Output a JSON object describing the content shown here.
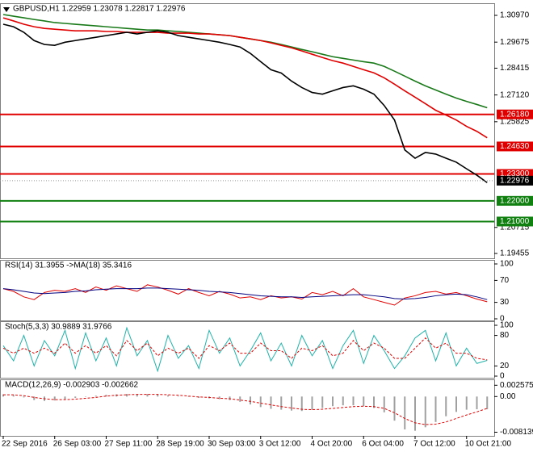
{
  "chart_data": [
    {
      "type": "line",
      "title": "GBPUSD,H1  1.22959 1.23078 1.22817 1.22976",
      "categories": [
        "22 Sep 2016",
        null,
        null,
        null,
        null,
        "26 Sep 03:00",
        null,
        null,
        null,
        null,
        "27 Sep 11:00",
        null,
        null,
        null,
        null,
        "28 Sep 19:00",
        null,
        null,
        null,
        null,
        "30 Sep 03:00",
        null,
        null,
        null,
        null,
        "3 Oct 12:00",
        null,
        null,
        null,
        null,
        "4 Oct 20:00",
        null,
        null,
        null,
        null,
        "6 Oct 04:00",
        null,
        null,
        null,
        null,
        "7 Oct 12:00",
        null,
        null,
        null,
        null,
        "10 Oct 21:00",
        null,
        null
      ],
      "series": [
        {
          "color": "#1a7a1a",
          "values": [
            1.3101,
            1.3093,
            1.3085,
            1.3077,
            1.307,
            1.3062,
            1.3058,
            1.3054,
            1.305,
            1.3046,
            1.3042,
            1.3038,
            1.3034,
            1.303,
            1.3026,
            1.3026,
            1.3022,
            1.3019,
            1.3015,
            1.3011,
            1.3007,
            1.3003,
            1.2999,
            1.2991,
            1.2983,
            1.2975,
            1.2967,
            1.2956,
            1.2944,
            1.2932,
            1.2921,
            1.2909,
            1.2897,
            1.2889,
            1.2881,
            1.2873,
            1.2866,
            1.285,
            1.2827,
            1.2803,
            1.2779,
            1.2756,
            1.2736,
            1.2716,
            1.2697,
            1.2681,
            1.2666,
            1.265
          ]
        },
        {
          "color": "#e00000",
          "values": [
            1.3085,
            1.307,
            1.3054,
            1.3042,
            1.3034,
            1.303,
            1.3026,
            1.3022,
            1.3022,
            1.3022,
            1.3019,
            1.3019,
            1.3015,
            1.3015,
            1.3015,
            1.3015,
            1.3011,
            1.3011,
            1.3011,
            1.3007,
            1.3007,
            1.3003,
            1.2999,
            1.2991,
            1.2983,
            1.2975,
            1.2964,
            1.2952,
            1.294,
            1.2925,
            1.2909,
            1.2893,
            1.2878,
            1.2866,
            1.285,
            1.2834,
            1.2819,
            1.2795,
            1.2764,
            1.2732,
            1.2701,
            1.267,
            1.2638,
            1.2615,
            1.2591,
            1.256,
            1.2536,
            1.2505
          ]
        },
        {
          "color": "#000000",
          "values": [
            1.3054,
            1.3042,
            1.3015,
            1.2975,
            1.2956,
            1.2952,
            1.2967,
            1.2975,
            1.2983,
            1.2991,
            1.2999,
            1.3007,
            1.3015,
            1.3007,
            1.3015,
            1.3022,
            1.3015,
            1.2999,
            1.2991,
            1.2983,
            1.2975,
            1.2967,
            1.2956,
            1.2944,
            1.2913,
            1.2873,
            1.2834,
            1.2818,
            1.2779,
            1.2748,
            1.2724,
            1.2716,
            1.2732,
            1.2748,
            1.2756,
            1.274,
            1.2716,
            1.2661,
            1.2591,
            1.2446,
            1.2406,
            1.2434,
            1.2426,
            1.2406,
            1.2387,
            1.2355,
            1.2324,
            1.2288
          ]
        }
      ],
      "ylim": [
        1.193,
        1.314
      ],
      "yticks": [
        {
          "value": 1.3097,
          "label": "1.30970"
        },
        {
          "value": 1.29675,
          "label": "1.29675"
        },
        {
          "value": 1.28415,
          "label": "1.28415"
        },
        {
          "value": 1.2712,
          "label": "1.27120"
        },
        {
          "value": 1.25825,
          "label": "1.25825"
        },
        {
          "value": 1.20715,
          "label": "1.20715"
        },
        {
          "value": 1.19455,
          "label": "1.19455"
        }
      ],
      "levels": [
        {
          "value": 1.2618,
          "label": "1.26180",
          "color": "#e00000"
        },
        {
          "value": 1.2463,
          "label": "1.24630",
          "color": "#e00000"
        },
        {
          "value": 1.233,
          "label": "1.23300",
          "color": "#e00000"
        },
        {
          "value": 1.22,
          "label": "1.22000",
          "color": "#108010"
        },
        {
          "value": 1.21,
          "label": "1.21000",
          "color": "#108010"
        }
      ],
      "last_price": {
        "value": 1.22976,
        "label": "1.22976"
      }
    },
    {
      "type": "line",
      "title": "RSI(14) 31.3955 ->MA(18) 35.3416",
      "series": [
        {
          "color": "#e00000",
          "values": [
            55,
            50,
            40,
            35,
            48,
            52,
            50,
            55,
            48,
            58,
            52,
            60,
            55,
            50,
            62,
            58,
            52,
            45,
            55,
            48,
            42,
            50,
            45,
            38,
            40,
            35,
            42,
            38,
            40,
            36,
            48,
            44,
            50,
            42,
            55,
            40,
            35,
            30,
            25,
            38,
            42,
            48,
            50,
            45,
            48,
            42,
            36,
            31
          ]
        },
        {
          "color": "#000080",
          "values": [
            55,
            53,
            50,
            47,
            46,
            47,
            48,
            50,
            51,
            53,
            54,
            55,
            55,
            55,
            56,
            56,
            55,
            54,
            53,
            52,
            50,
            49,
            48,
            46,
            44,
            42,
            41,
            40,
            40,
            39,
            40,
            41,
            42,
            43,
            44,
            44,
            42,
            40,
            37,
            36,
            37,
            39,
            42,
            44,
            45,
            44,
            40,
            35
          ]
        }
      ],
      "ylim": [
        0,
        100
      ],
      "yticks": [
        100,
        70,
        30,
        0
      ]
    },
    {
      "type": "line",
      "title": "Stoch(5,3,3) 30.9889 31.9766",
      "series": [
        {
          "color": "#20b2aa",
          "values": [
            60,
            30,
            80,
            20,
            70,
            40,
            90,
            15,
            85,
            30,
            75,
            20,
            95,
            40,
            70,
            10,
            80,
            35,
            60,
            15,
            90,
            45,
            75,
            20,
            50,
            85,
            30,
            65,
            20,
            80,
            40,
            70,
            15,
            60,
            90,
            25,
            80,
            50,
            15,
            40,
            75,
            90,
            30,
            85,
            20,
            55,
            25,
            31
          ]
        },
        {
          "color": "#e00000",
          "dash": true,
          "values": [
            55,
            45,
            55,
            45,
            55,
            45,
            65,
            45,
            60,
            45,
            60,
            40,
            70,
            50,
            65,
            40,
            55,
            45,
            55,
            35,
            60,
            50,
            65,
            45,
            45,
            65,
            50,
            50,
            35,
            55,
            50,
            60,
            40,
            45,
            70,
            50,
            65,
            55,
            35,
            35,
            55,
            75,
            55,
            65,
            45,
            45,
            35,
            32
          ]
        }
      ],
      "ylim": [
        0,
        100
      ],
      "yticks": [
        100,
        80,
        20,
        0
      ]
    },
    {
      "type": "line",
      "title": "MACD(12,26,9) -0.002903 -0.002662",
      "series": [
        {
          "color": "#a0a0a0",
          "style": "bar",
          "values": [
            0.0005,
            0.0003,
            -0.0002,
            -0.0008,
            -0.001,
            -0.0009,
            -0.0006,
            -0.0003,
            0.0,
            0.0002,
            0.0004,
            0.0005,
            0.0006,
            0.0005,
            0.0006,
            0.0005,
            0.0003,
            0.0001,
            -0.0001,
            -0.0003,
            -0.0004,
            -0.0006,
            -0.0008,
            -0.0012,
            -0.0018,
            -0.0024,
            -0.0028,
            -0.003,
            -0.0032,
            -0.0033,
            -0.003,
            -0.0026,
            -0.0022,
            -0.002,
            -0.002,
            -0.0022,
            -0.0026,
            -0.0036,
            -0.0055,
            -0.0075,
            -0.0078,
            -0.007,
            -0.0058,
            -0.0045,
            -0.0035,
            -0.003,
            -0.0029,
            -0.0029
          ]
        },
        {
          "color": "#e00000",
          "dash": true,
          "values": [
            0.0004,
            0.0004,
            0.0002,
            -0.0002,
            -0.0005,
            -0.0007,
            -0.0007,
            -0.0006,
            -0.0004,
            -0.0002,
            0.0001,
            0.0003,
            0.0004,
            0.0005,
            0.0005,
            0.0005,
            0.0004,
            0.0003,
            0.0001,
            -0.0001,
            -0.0002,
            -0.0004,
            -0.0005,
            -0.0008,
            -0.0011,
            -0.0015,
            -0.0019,
            -0.0023,
            -0.0026,
            -0.0029,
            -0.003,
            -0.0029,
            -0.0027,
            -0.0025,
            -0.0023,
            -0.0022,
            -0.0023,
            -0.0027,
            -0.0037,
            -0.005,
            -0.006,
            -0.0064,
            -0.0063,
            -0.0058,
            -0.005,
            -0.0042,
            -0.0035,
            -0.0027
          ]
        }
      ],
      "ylim": [
        -0.0086,
        0.003
      ],
      "yticks": [
        {
          "value": 0.002575,
          "label": "0.002575"
        },
        {
          "value": 0,
          "label": "0.00"
        },
        {
          "value": -0.008139,
          "label": "-0.008139"
        }
      ]
    }
  ]
}
